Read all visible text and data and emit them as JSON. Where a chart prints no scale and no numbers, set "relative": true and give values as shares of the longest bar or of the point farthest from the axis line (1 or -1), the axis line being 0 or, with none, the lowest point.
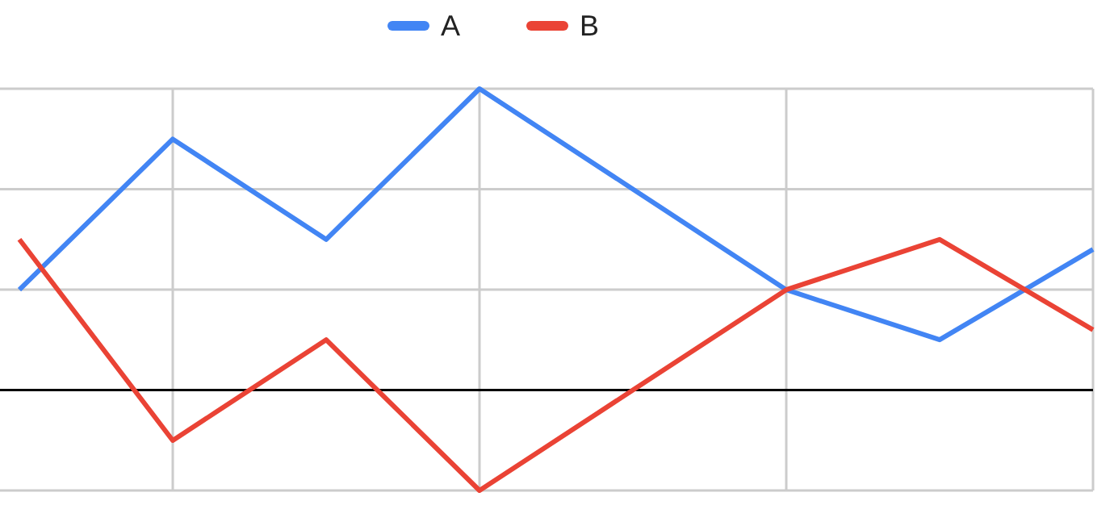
{
  "chart_data": {
    "type": "line",
    "relative": true,
    "categories": [
      null,
      null,
      null,
      null,
      null,
      null,
      null,
      null
    ],
    "series": [
      {
        "name": "A",
        "color": "#4285f4",
        "values": [
          0.333,
          0.833,
          0.5,
          1,
          0.667,
          0.333,
          0.167,
          0.467
        ]
      },
      {
        "name": "B",
        "color": "#ea4335",
        "values": [
          0.5,
          -0.167,
          0.167,
          -0.333,
          0,
          0.333,
          0.5,
          0.2
        ]
      }
    ],
    "grid": true,
    "legend": "top",
    "marker": "none",
    "line_style": "solid"
  }
}
